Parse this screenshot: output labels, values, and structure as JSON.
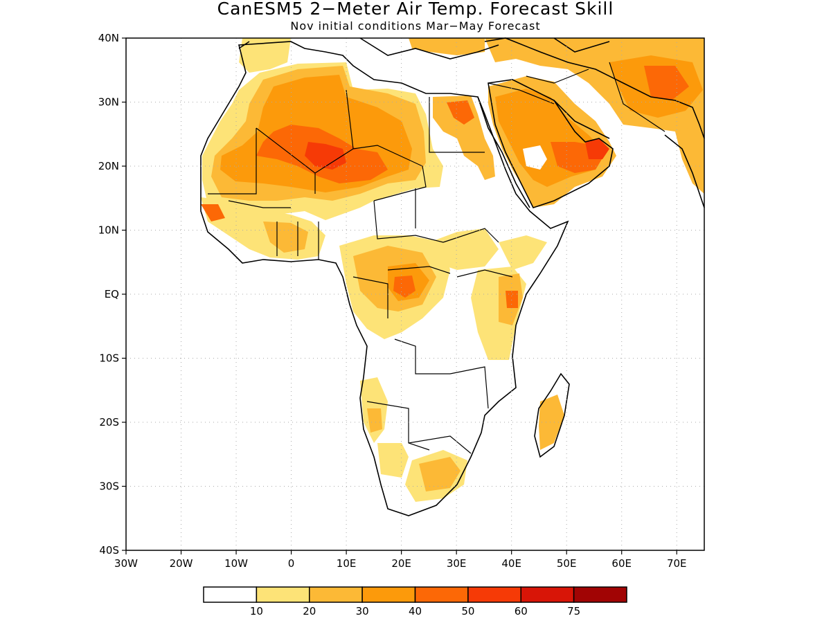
{
  "title": "CanESM5 2−Meter Air Temp. Forecast Skill",
  "subtitle": "Nov initial conditions  Mar−May Forecast",
  "map": {
    "lon_range": [
      -30,
      75
    ],
    "lat_range": [
      -40,
      40
    ],
    "lat_labels": [
      "40N",
      "30N",
      "20N",
      "10N",
      "EQ",
      "10S",
      "20S",
      "30S",
      "40S"
    ],
    "lat_values": [
      40,
      30,
      20,
      10,
      0,
      -10,
      -20,
      -30,
      -40
    ],
    "lon_labels": [
      "30W",
      "20W",
      "10W",
      "0",
      "10E",
      "20E",
      "30E",
      "40E",
      "50E",
      "60E",
      "70E"
    ],
    "lon_values": [
      -30,
      -20,
      -10,
      0,
      10,
      20,
      30,
      40,
      50,
      60,
      70
    ],
    "gridlines": true
  },
  "colorbar": {
    "labels": [
      "10",
      "20",
      "30",
      "40",
      "50",
      "60",
      "75"
    ],
    "colors": [
      "#ffffff",
      "#fde377",
      "#fcb936",
      "#fc9a0b",
      "#fc6806",
      "#f63a06",
      "#d81507",
      "#a10404"
    ]
  },
  "colors": {
    "c10": "#fde377",
    "c20": "#fcb936",
    "c30": "#fc9a0b",
    "c40": "#fc6806",
    "c50": "#f63a06",
    "c60": "#d81507"
  }
}
